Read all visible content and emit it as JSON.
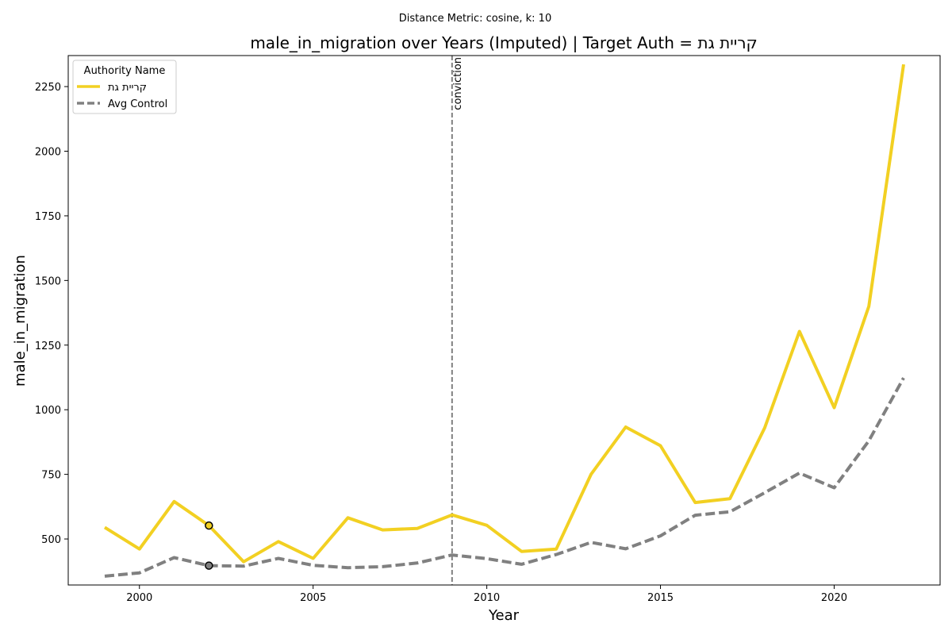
{
  "chart_data": {
    "type": "line",
    "suptitle": "Distance Metric: cosine, k: 10",
    "title": "male_in_migration over Years (Imputed) | Target Auth = קריית גת",
    "xlabel": "Year",
    "ylabel": "male_in_migration",
    "xlim": [
      1997.95,
      2023.05
    ],
    "ylim": [
      322,
      2370
    ],
    "x_ticks": [
      2000,
      2005,
      2010,
      2015,
      2020
    ],
    "y_ticks": [
      500,
      750,
      1000,
      1250,
      1500,
      1750,
      2000,
      2250
    ],
    "grid": false,
    "legend": {
      "title": "Authority Name",
      "placement": "top-left"
    },
    "x": [
      1999,
      2000,
      2001,
      2002,
      2003,
      2004,
      2005,
      2006,
      2007,
      2008,
      2009,
      2010,
      2011,
      2012,
      2013,
      2014,
      2015,
      2016,
      2017,
      2018,
      2019,
      2020,
      2021,
      2022
    ],
    "series": [
      {
        "name": "קריית גת",
        "color": "#f2d022",
        "style": "solid",
        "values": [
          545,
          461,
          645,
          552,
          412,
          490,
          425,
          582,
          535,
          541,
          593,
          553,
          452,
          461,
          750,
          933,
          861,
          641,
          656,
          930,
          1303,
          1008,
          1400,
          2336
        ]
      },
      {
        "name": "Avg Control",
        "color": "#808080",
        "style": "dashed",
        "values": [
          356,
          369,
          428,
          397,
          395,
          425,
          398,
          389,
          393,
          407,
          438,
          424,
          402,
          440,
          487,
          462,
          512,
          592,
          605,
          679,
          755,
          698,
          880,
          1123
        ]
      }
    ],
    "imputed_markers": [
      {
        "series": "קריית גת",
        "x": 2002,
        "y": 552
      },
      {
        "series": "Avg Control",
        "x": 2002,
        "y": 397
      }
    ],
    "annotations": [
      {
        "type": "vline",
        "x": 2009,
        "label": "conviction",
        "color": "#808080",
        "style": "dashed"
      }
    ]
  }
}
